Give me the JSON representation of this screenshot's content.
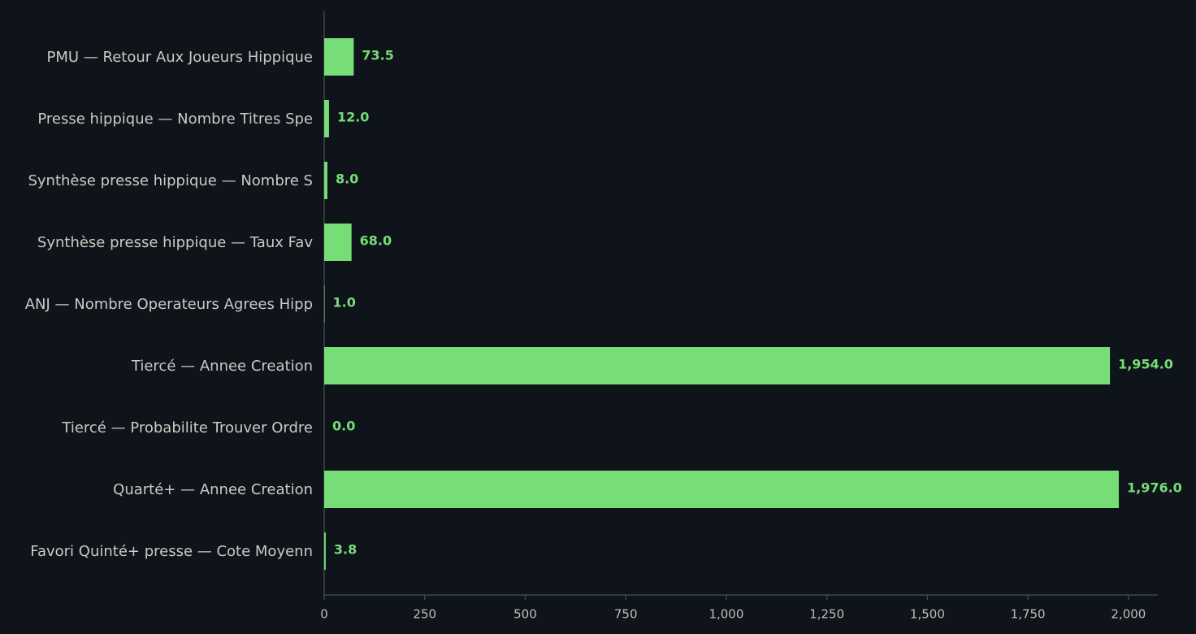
{
  "chart_data": {
    "type": "barh",
    "categories": [
      "PMU — Retour Aux Joueurs Hippique",
      "Presse hippique — Nombre Titres Spe",
      "Synthèse presse hippique — Nombre S",
      "Synthèse presse hippique — Taux Fav",
      "ANJ — Nombre Operateurs Agrees Hipp",
      "Tiercé — Annee Creation",
      "Tiercé — Probabilite Trouver Ordre",
      "Quarté+ — Annee Creation",
      "Favori Quinté+ presse — Cote Moyenn"
    ],
    "values": [
      73.5,
      12.0,
      8.0,
      68.0,
      1.0,
      1954.0,
      0.0,
      1976.0,
      3.8
    ],
    "value_labels": [
      "73.5",
      "12.0",
      "8.0",
      "68.0",
      "1.0",
      "1,954.0",
      "0.0",
      "1,976.0",
      "3.8"
    ],
    "color": "#77dd77",
    "xlim": [
      0,
      2073
    ],
    "xticks": [
      0,
      250,
      500,
      750,
      {
        "value": 1000,
        "label": "1,000"
      },
      {
        "value": 1250,
        "label": "1,250"
      },
      {
        "value": 1500,
        "label": "1,500"
      },
      {
        "value": 1750,
        "label": "1,750"
      },
      {
        "value": 2000,
        "label": "2,000"
      }
    ]
  }
}
